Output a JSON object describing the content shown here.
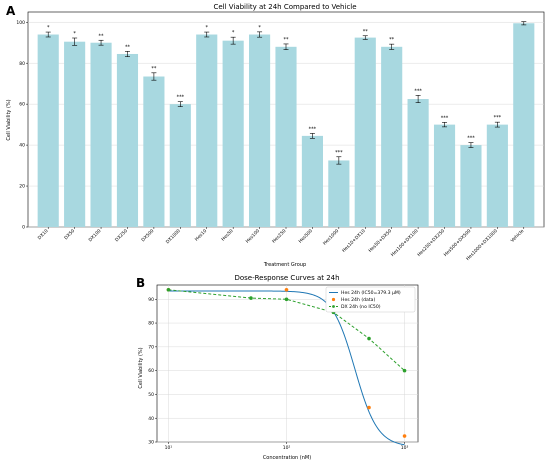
{
  "panels": {
    "a_label": "A",
    "b_label": "B"
  },
  "chart_data": [
    {
      "type": "bar",
      "title": "Cell Viability at 24h Compared to Vehicle",
      "xlabel": "Treatment Group",
      "ylabel": "Cell Viability (%)",
      "ylim": [
        0,
        105
      ],
      "yticks": [
        0,
        20,
        40,
        60,
        80,
        100
      ],
      "grid": true,
      "bar_color": "#a8d8e0",
      "categories": [
        "DX10",
        "DX50",
        "DX100",
        "DX250",
        "DX500",
        "DX1000",
        "Hes10",
        "Hes50",
        "Hes100",
        "Hes250",
        "Hes500",
        "Hes1000",
        "Hes10+DX10",
        "Hes50+DX50",
        "Hes100+DX100",
        "Hes250+DX250",
        "Hes500+DX500",
        "Hes1000+DX1000",
        "Vehicle"
      ],
      "values": [
        94,
        90.5,
        90,
        84.5,
        73.5,
        60,
        94,
        91,
        94,
        88,
        44.5,
        32.5,
        92.5,
        88,
        62.5,
        50,
        40,
        50,
        99.5
      ],
      "errors": [
        1.2,
        1.8,
        1.2,
        1.3,
        1.8,
        1.2,
        1.2,
        1.7,
        1.3,
        1.4,
        1.2,
        1.8,
        0.9,
        1.3,
        1.8,
        1.1,
        1.2,
        1.2,
        0.8
      ],
      "significance": [
        "*",
        "*",
        "**",
        "**",
        "**",
        "***",
        "*",
        "*",
        "*",
        "**",
        "***",
        "***",
        "**",
        "**",
        "***",
        "***",
        "***",
        "***",
        ""
      ]
    },
    {
      "type": "line",
      "title": "Dose-Response Curves at 24h",
      "xlabel": "Concentration (nM)",
      "ylabel": "Cell Viability (%)",
      "xscale": "log",
      "xlim": [
        8,
        1300
      ],
      "ylim": [
        30,
        96
      ],
      "yticks": [
        30,
        40,
        50,
        60,
        70,
        80,
        90
      ],
      "xticks": [
        {
          "value": 10,
          "label": "10¹"
        },
        {
          "value": 100,
          "label": "10²"
        },
        {
          "value": 1000,
          "label": "10³"
        }
      ],
      "grid": true,
      "legend_position": "top-right",
      "series": [
        {
          "name": "Hes 24h (IC50=379.3 μM)",
          "kind": "fit",
          "color": "#1f77b4",
          "style": "solid",
          "ic50": 379.3,
          "top": 93.5,
          "bottom": 28,
          "hill": 4.5
        },
        {
          "name": "Hes 24h (data)",
          "kind": "points",
          "color": "#ff7f0e",
          "x": [
            10,
            100,
            250,
            500,
            1000
          ],
          "y": [
            94,
            94,
            88,
            44.5,
            32.5
          ]
        },
        {
          "name": "DX 24h (no IC50)",
          "kind": "dashed-line",
          "color": "#2ca02c",
          "x": [
            10,
            50,
            100,
            250,
            500,
            1000
          ],
          "y": [
            94,
            90.5,
            90,
            84.5,
            73.5,
            60
          ]
        }
      ]
    }
  ]
}
